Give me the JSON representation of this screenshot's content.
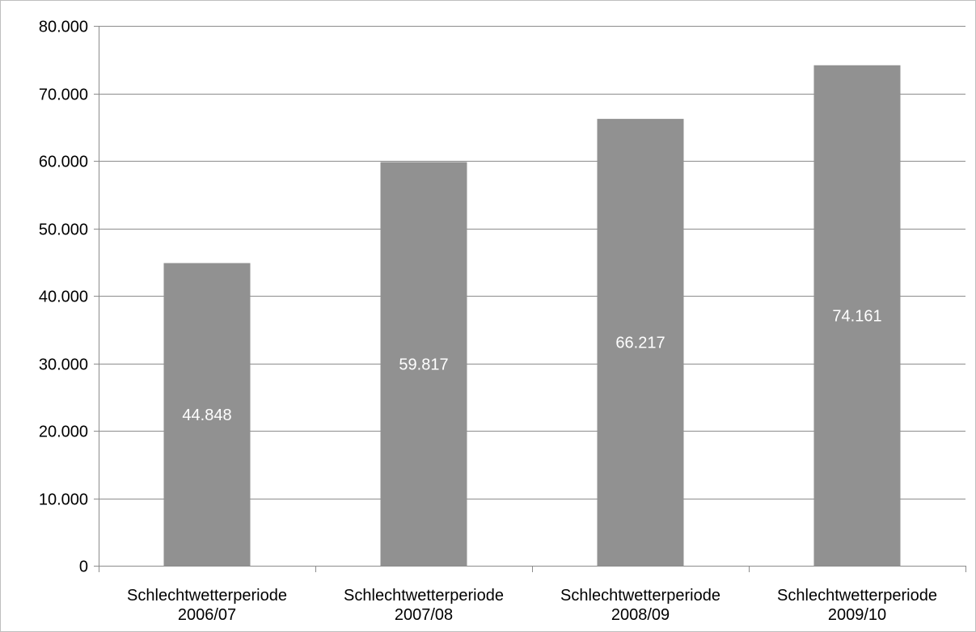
{
  "chart_data": {
    "type": "bar",
    "categories": [
      [
        "Schlechtwetterperiode",
        "2006/07"
      ],
      [
        "Schlechtwetterperiode",
        "2007/08"
      ],
      [
        "Schlechtwetterperiode",
        "2008/09"
      ],
      [
        "Schlechtwetterperiode",
        "2009/10"
      ]
    ],
    "values": [
      44848,
      59817,
      66217,
      74161
    ],
    "data_labels": [
      "44.848",
      "59.817",
      "66.217",
      "74.161"
    ],
    "y_ticks": [
      0,
      10000,
      20000,
      30000,
      40000,
      50000,
      60000,
      70000,
      80000
    ],
    "y_tick_labels": [
      "0",
      "10.000",
      "20.000",
      "30.000",
      "40.000",
      "50.000",
      "60.000",
      "70.000",
      "80.000"
    ],
    "ylim": [
      0,
      80000
    ],
    "grid": true,
    "legend": false,
    "colors": {
      "bar": "#919191",
      "grid": "#8c8c8c",
      "axis": "#8c8c8c",
      "data_label": "#ffffff",
      "text": "#000000"
    }
  }
}
